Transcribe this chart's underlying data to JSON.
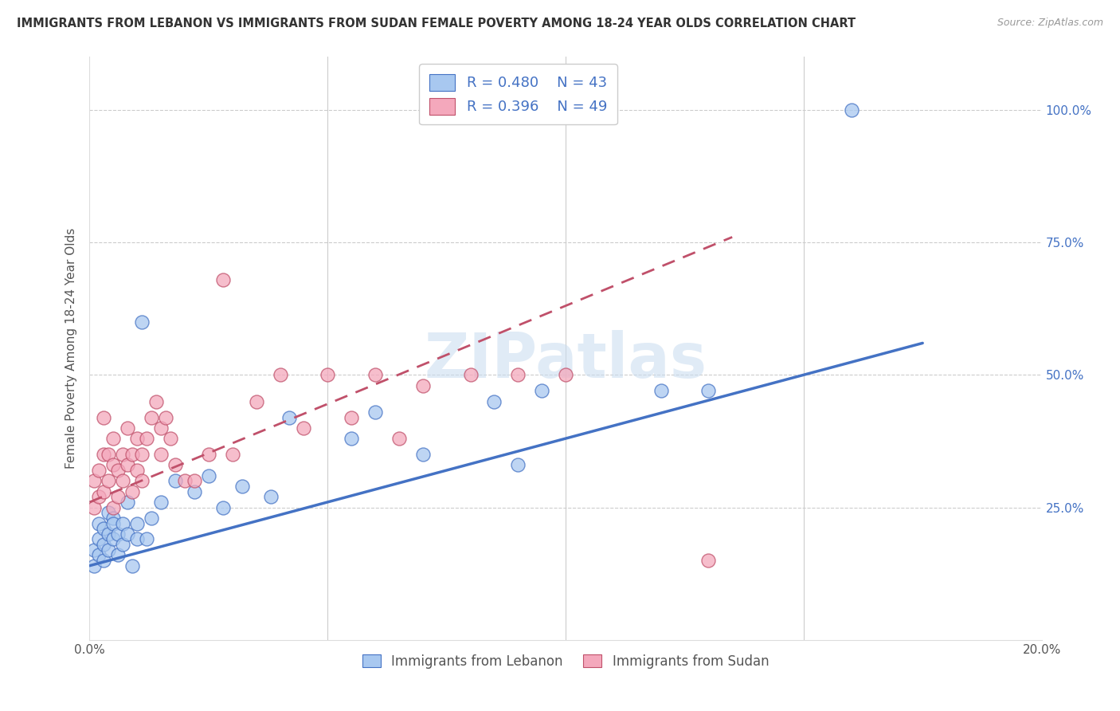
{
  "title": "IMMIGRANTS FROM LEBANON VS IMMIGRANTS FROM SUDAN FEMALE POVERTY AMONG 18-24 YEAR OLDS CORRELATION CHART",
  "source": "Source: ZipAtlas.com",
  "ylabel": "Female Poverty Among 18-24 Year Olds",
  "watermark": "ZIPatlas",
  "lebanon_R": 0.48,
  "lebanon_N": 43,
  "sudan_R": 0.396,
  "sudan_N": 49,
  "xlim": [
    0.0,
    0.2
  ],
  "ylim": [
    0.0,
    1.1
  ],
  "xticks": [
    0.0,
    0.05,
    0.1,
    0.15,
    0.2
  ],
  "xtick_labels": [
    "0.0%",
    "",
    "",
    "",
    "20.0%"
  ],
  "ytick_labels_right": [
    "",
    "25.0%",
    "50.0%",
    "75.0%",
    "100.0%"
  ],
  "yticks": [
    0.0,
    0.25,
    0.5,
    0.75,
    1.0
  ],
  "lebanon_color": "#A8C8F0",
  "lebanon_line_color": "#4472C4",
  "sudan_color": "#F4A8BC",
  "sudan_line_color": "#C0506A",
  "bg_color": "#FFFFFF",
  "grid_color": "#CCCCCC",
  "lebanon_x": [
    0.001,
    0.001,
    0.002,
    0.002,
    0.002,
    0.003,
    0.003,
    0.003,
    0.004,
    0.004,
    0.004,
    0.005,
    0.005,
    0.005,
    0.006,
    0.006,
    0.007,
    0.007,
    0.008,
    0.008,
    0.009,
    0.01,
    0.01,
    0.011,
    0.012,
    0.013,
    0.015,
    0.018,
    0.022,
    0.025,
    0.028,
    0.032,
    0.038,
    0.042,
    0.055,
    0.06,
    0.07,
    0.085,
    0.09,
    0.095,
    0.12,
    0.13,
    0.16
  ],
  "lebanon_y": [
    0.14,
    0.17,
    0.16,
    0.19,
    0.22,
    0.18,
    0.21,
    0.15,
    0.2,
    0.24,
    0.17,
    0.23,
    0.19,
    0.22,
    0.16,
    0.2,
    0.18,
    0.22,
    0.2,
    0.26,
    0.14,
    0.19,
    0.22,
    0.6,
    0.19,
    0.23,
    0.26,
    0.3,
    0.28,
    0.31,
    0.25,
    0.29,
    0.27,
    0.42,
    0.38,
    0.43,
    0.35,
    0.45,
    0.33,
    0.47,
    0.47,
    0.47,
    1.0
  ],
  "sudan_x": [
    0.001,
    0.001,
    0.002,
    0.002,
    0.003,
    0.003,
    0.003,
    0.004,
    0.004,
    0.005,
    0.005,
    0.005,
    0.006,
    0.006,
    0.007,
    0.007,
    0.008,
    0.008,
    0.009,
    0.009,
    0.01,
    0.01,
    0.011,
    0.011,
    0.012,
    0.013,
    0.014,
    0.015,
    0.015,
    0.016,
    0.017,
    0.018,
    0.02,
    0.022,
    0.025,
    0.028,
    0.03,
    0.035,
    0.04,
    0.045,
    0.05,
    0.055,
    0.06,
    0.065,
    0.07,
    0.08,
    0.09,
    0.1,
    0.13
  ],
  "sudan_y": [
    0.25,
    0.3,
    0.27,
    0.32,
    0.28,
    0.35,
    0.42,
    0.3,
    0.35,
    0.25,
    0.33,
    0.38,
    0.27,
    0.32,
    0.3,
    0.35,
    0.33,
    0.4,
    0.28,
    0.35,
    0.32,
    0.38,
    0.3,
    0.35,
    0.38,
    0.42,
    0.45,
    0.4,
    0.35,
    0.42,
    0.38,
    0.33,
    0.3,
    0.3,
    0.35,
    0.68,
    0.35,
    0.45,
    0.5,
    0.4,
    0.5,
    0.42,
    0.5,
    0.38,
    0.48,
    0.5,
    0.5,
    0.5,
    0.15
  ],
  "leb_line_x0": 0.0,
  "leb_line_y0": 0.14,
  "leb_line_x1": 0.175,
  "leb_line_y1": 0.56,
  "sud_line_x0": 0.0,
  "sud_line_y0": 0.26,
  "sud_line_x1": 0.135,
  "sud_line_y1": 0.76
}
